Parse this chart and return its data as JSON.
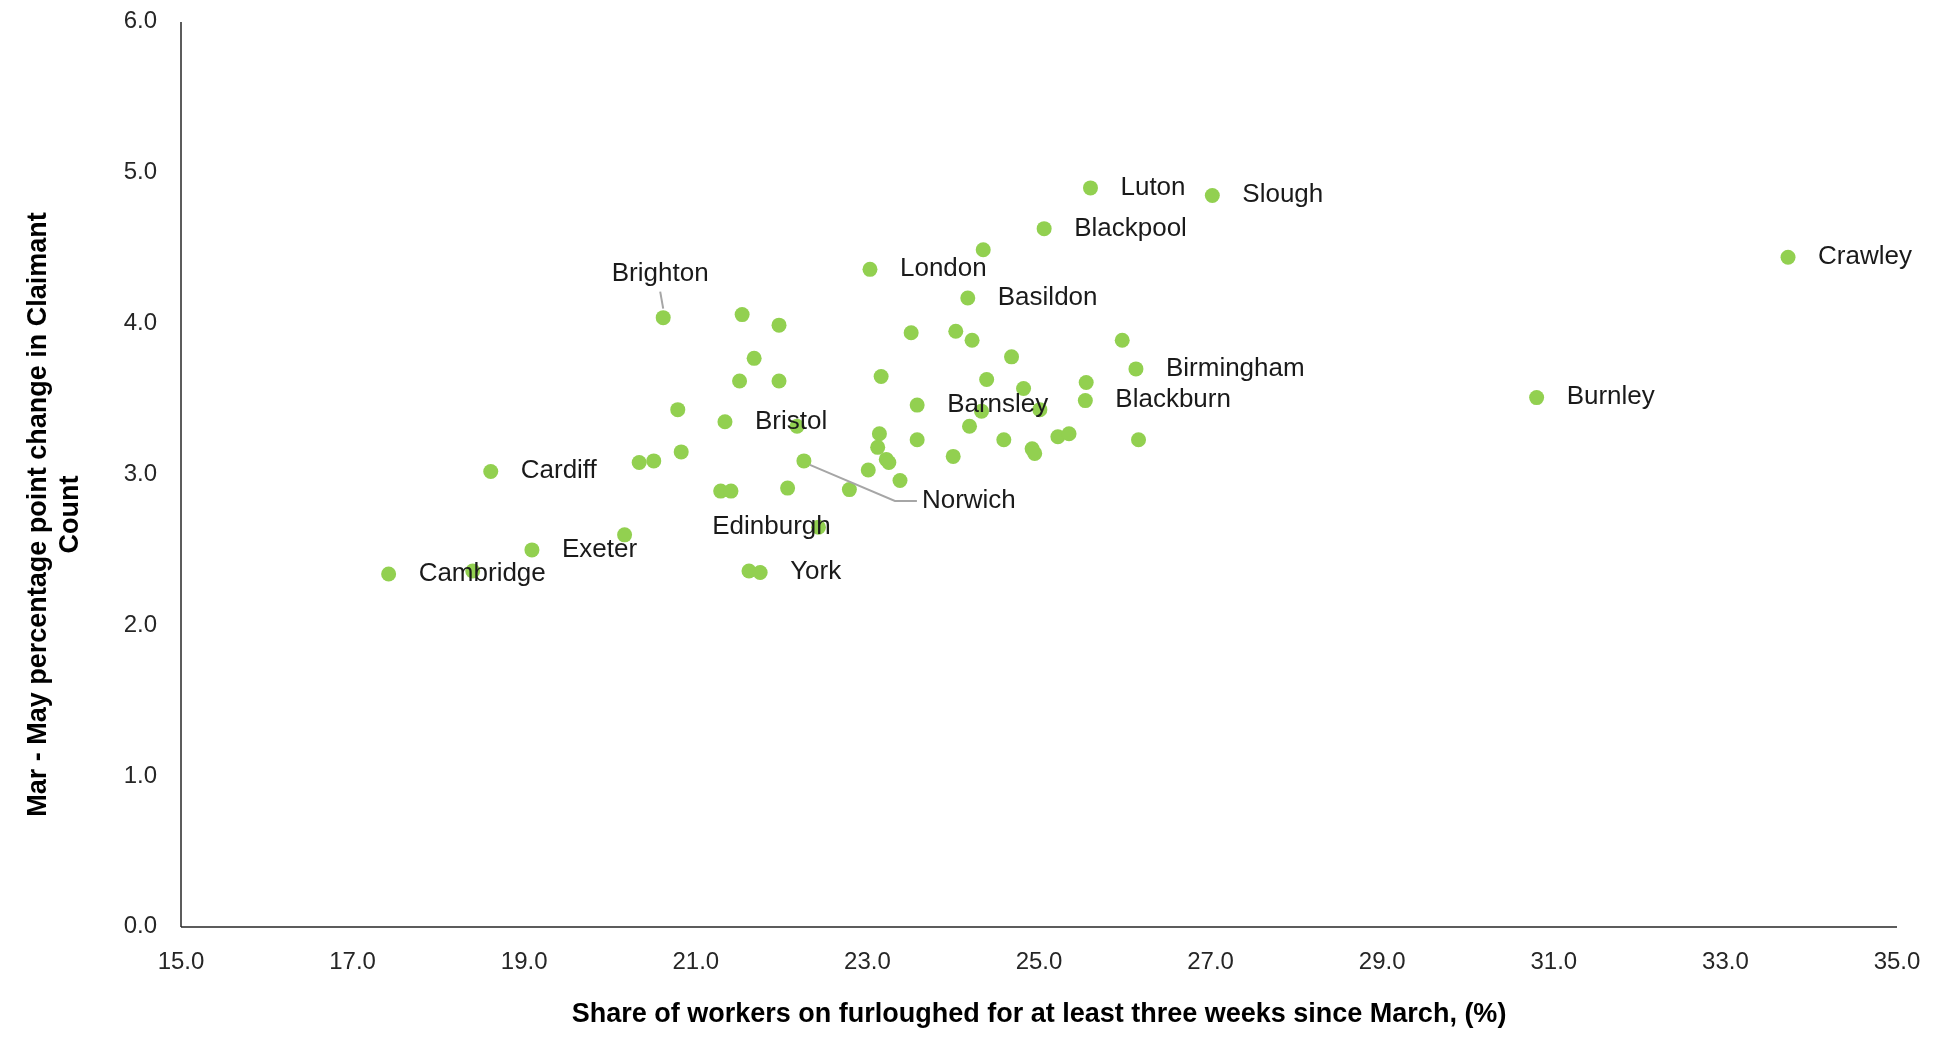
{
  "chart_data": {
    "type": "scatter",
    "xlabel": "Share of workers on furloughed for at least three weeks since March, (%)",
    "ylabel": "Mar - May percentage point change in Claimant Count",
    "marker": "circle",
    "grid": false,
    "xlim": [
      15,
      35
    ],
    "ylim": [
      0,
      6
    ],
    "xticks": [
      {
        "value": 15,
        "label": "15.0"
      },
      {
        "value": 17,
        "label": "17.0"
      },
      {
        "value": 19,
        "label": "19.0"
      },
      {
        "value": 21,
        "label": "21.0"
      },
      {
        "value": 23,
        "label": "23.0"
      },
      {
        "value": 25,
        "label": "25.0"
      },
      {
        "value": 27,
        "label": "27.0"
      },
      {
        "value": 29,
        "label": "29.0"
      },
      {
        "value": 31,
        "label": "31.0"
      },
      {
        "value": 33,
        "label": "33.0"
      },
      {
        "value": 35,
        "label": "35.0"
      }
    ],
    "yticks": [
      {
        "value": 0,
        "label": "0.0"
      },
      {
        "value": 1,
        "label": "1.0"
      },
      {
        "value": 2,
        "label": "2.0"
      },
      {
        "value": 3,
        "label": "3.0"
      },
      {
        "value": 4,
        "label": "4.0"
      },
      {
        "value": 5,
        "label": "5.0"
      },
      {
        "value": 6,
        "label": "6.0"
      }
    ],
    "series": [
      {
        "color": "#92d050",
        "x": [
          17.42,
          18.4,
          19.09,
          18.61,
          20.17,
          20.34,
          20.51,
          20.79,
          20.83,
          20.62,
          21.54,
          21.97,
          21.68,
          21.51,
          21.97,
          21.34,
          22.18,
          21.29,
          21.41,
          22.07,
          22.26,
          21.62,
          21.75,
          22.43,
          22.79,
          23.01,
          23.14,
          23.12,
          23.22,
          23.25,
          23.38,
          23.16,
          23.03,
          23.51,
          23.58,
          23.58,
          24.0,
          24.03,
          24.22,
          24.17,
          24.35,
          24.19,
          24.33,
          24.39,
          24.59,
          24.68,
          24.82,
          24.92,
          24.95,
          25.01,
          25.06,
          25.22,
          25.35,
          25.55,
          25.54,
          25.6,
          25.97,
          26.13,
          26.16,
          27.02,
          30.8,
          33.73
        ],
        "values": [
          2.34,
          2.36,
          2.5,
          3.02,
          2.6,
          3.08,
          3.09,
          3.43,
          3.15,
          4.04,
          4.06,
          3.99,
          3.77,
          3.62,
          3.62,
          3.35,
          3.32,
          2.89,
          2.89,
          2.91,
          3.09,
          2.36,
          2.35,
          2.65,
          2.9,
          3.03,
          3.27,
          3.18,
          3.1,
          3.08,
          2.96,
          3.65,
          4.36,
          3.94,
          3.46,
          3.23,
          3.12,
          3.95,
          3.89,
          4.17,
          4.49,
          3.32,
          3.42,
          3.63,
          3.23,
          3.78,
          3.57,
          3.17,
          3.14,
          3.43,
          4.63,
          3.25,
          3.27,
          3.61,
          3.49,
          4.9,
          3.89,
          3.7,
          3.23,
          4.85,
          3.51,
          4.44
        ]
      }
    ],
    "annotations": [
      {
        "text": "Brighton",
        "x": 20.62,
        "y": 4.04
      },
      {
        "text": "London",
        "x": 23.03,
        "y": 4.36
      },
      {
        "text": "Basildon",
        "x": 24.17,
        "y": 4.17
      },
      {
        "text": "Luton",
        "x": 25.6,
        "y": 4.9
      },
      {
        "text": "Slough",
        "x": 27.02,
        "y": 4.85
      },
      {
        "text": "Blackpool",
        "x": 25.06,
        "y": 4.63
      },
      {
        "text": "Crawley",
        "x": 33.73,
        "y": 4.44
      },
      {
        "text": "Birmingham",
        "x": 26.13,
        "y": 3.7
      },
      {
        "text": "Blackburn",
        "x": 25.54,
        "y": 3.49
      },
      {
        "text": "Burnley",
        "x": 30.8,
        "y": 3.51
      },
      {
        "text": "Barnsley",
        "x": 23.58,
        "y": 3.46
      },
      {
        "text": "Bristol",
        "x": 21.34,
        "y": 3.35
      },
      {
        "text": "Cardiff",
        "x": 18.61,
        "y": 3.02
      },
      {
        "text": "Norwich",
        "x": 22.26,
        "y": 3.09
      },
      {
        "text": "Edinburgh",
        "x": 22.43,
        "y": 2.65
      },
      {
        "text": "Exeter",
        "x": 19.09,
        "y": 2.5
      },
      {
        "text": "Cambridge",
        "x": 17.42,
        "y": 2.34
      },
      {
        "text": "York",
        "x": 21.75,
        "y": 2.35
      }
    ]
  }
}
